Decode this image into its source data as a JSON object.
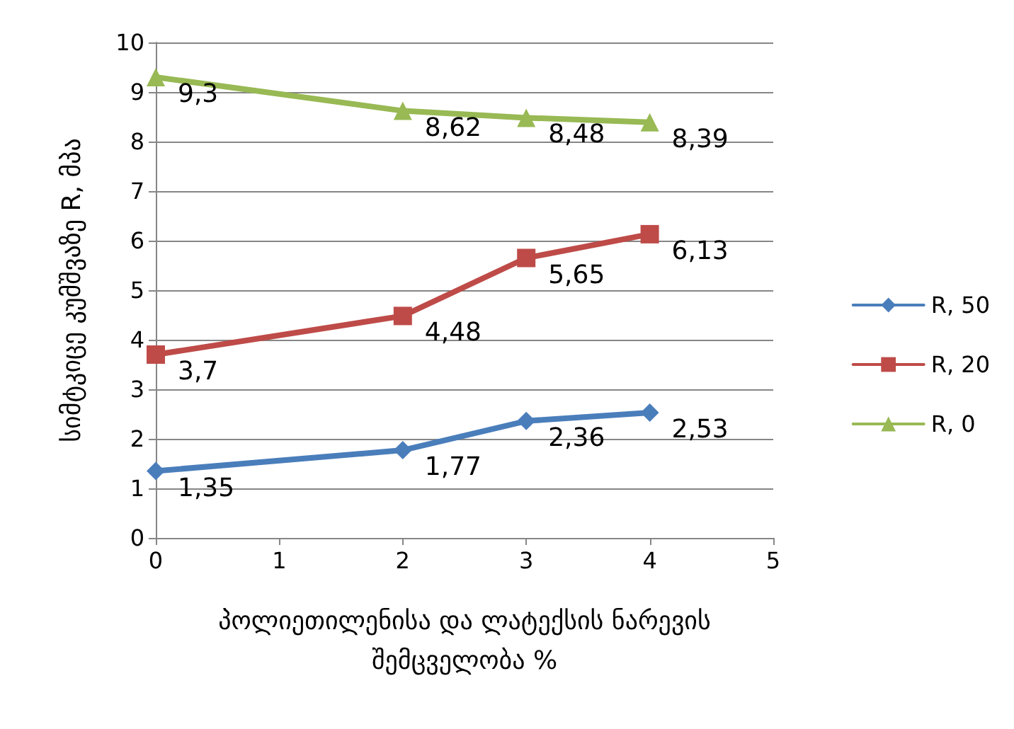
{
  "chart_data": {
    "type": "line",
    "xlabel": "პოლიეთილენისა და ლატექსის ნარევის\nშემცველობა %",
    "ylabel": "სიმტკიცე კუმშვაზე R, მპა",
    "x": [
      0,
      2,
      3,
      4
    ],
    "series": [
      {
        "name": "R, 50",
        "color": "#4a7ebb",
        "marker": "diamond",
        "values": [
          1.35,
          1.77,
          2.36,
          2.53
        ],
        "value_labels": [
          "1,35",
          "1,77",
          "2,36",
          "2,53"
        ]
      },
      {
        "name": "R, 20",
        "color": "#be4b48",
        "marker": "square",
        "values": [
          3.7,
          4.48,
          5.65,
          6.13
        ],
        "value_labels": [
          "3,7",
          "4,48",
          "5,65",
          "6,13"
        ]
      },
      {
        "name": "R, 0",
        "color": "#98b954",
        "marker": "triangle",
        "values": [
          9.3,
          8.62,
          8.48,
          8.39
        ],
        "value_labels": [
          "9,3",
          "8,62",
          "8,48",
          "8,39"
        ]
      }
    ],
    "xlim": [
      0,
      5
    ],
    "xticks": [
      0,
      1,
      2,
      3,
      4,
      5
    ],
    "ylim": [
      0,
      10
    ],
    "yticks": [
      0,
      1,
      2,
      3,
      4,
      5,
      6,
      7,
      8,
      9,
      10
    ],
    "grid": "y",
    "legend": "right"
  }
}
